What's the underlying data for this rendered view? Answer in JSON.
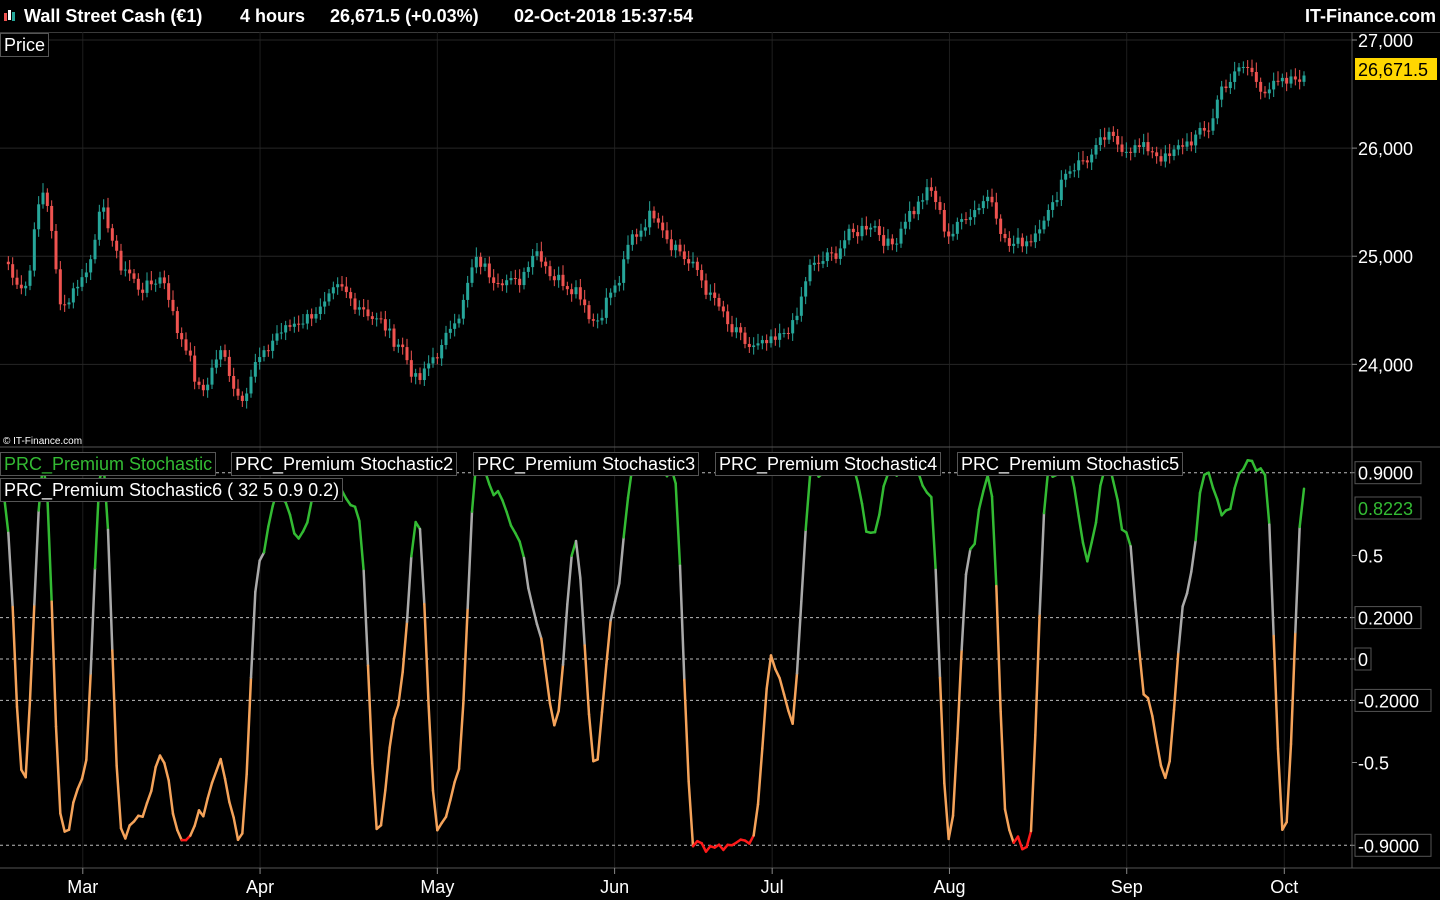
{
  "header": {
    "instrument": "Wall Street Cash (€1)",
    "timeframe": "4 hours",
    "quote": "26,671.5 (+0.03%)",
    "datetime": "02-Oct-2018 15:37:54",
    "brand": "IT-Finance.com"
  },
  "price_panel": {
    "label": "Price",
    "copyright": "© IT-Finance.com",
    "last_label": "26,671.5"
  },
  "indicator_panel": {
    "labels": [
      "PRC_Premium Stochastic",
      "PRC_Premium Stochastic2",
      "PRC_Premium Stochastic3",
      "PRC_Premium Stochastic4",
      "PRC_Premium Stochastic5"
    ],
    "label6": "PRC_Premium Stochastic6 ( 32 5 0.9 0.2)",
    "last_label": "0.8223"
  },
  "colors": {
    "up": "#26a69a",
    "down": "#ef5350",
    "last_price_bg": "#ffd700",
    "osc_green": "#33bb33",
    "osc_gray": "#aaaaaa",
    "osc_orange": "#f5a35a",
    "osc_red": "#ff1a1a"
  },
  "chart_data": [
    {
      "type": "line",
      "title": "Wall Street Cash (€1)",
      "ylim": [
        23300,
        27000
      ],
      "yticks": [
        27000,
        26000,
        25000,
        24000
      ],
      "ytick_labels": [
        "27,000",
        "26,000",
        "25,000",
        "24,000"
      ],
      "x_months": [
        "Mar",
        "Apr",
        "May",
        "Jun",
        "Jul",
        "Aug",
        "Sep",
        "Oct"
      ],
      "x": [
        "02-15",
        "02-19",
        "02-22",
        "02-26",
        "03-01",
        "03-05",
        "03-08",
        "03-12",
        "03-15",
        "03-19",
        "03-22",
        "03-26",
        "03-29",
        "04-02",
        "04-05",
        "04-09",
        "04-12",
        "04-16",
        "04-19",
        "04-23",
        "04-26",
        "04-30",
        "05-03",
        "05-07",
        "05-10",
        "05-14",
        "05-17",
        "05-21",
        "05-24",
        "05-28",
        "05-31",
        "06-04",
        "06-07",
        "06-11",
        "06-14",
        "06-18",
        "06-21",
        "06-25",
        "06-28",
        "07-02",
        "07-05",
        "07-09",
        "07-12",
        "07-16",
        "07-19",
        "07-23",
        "07-26",
        "07-30",
        "08-02",
        "08-06",
        "08-09",
        "08-13",
        "08-16",
        "08-20",
        "08-23",
        "08-27",
        "08-30",
        "09-03",
        "09-06",
        "09-10",
        "09-13",
        "09-17",
        "09-20",
        "09-24",
        "09-27",
        "10-01",
        "10-02"
      ],
      "values": [
        24950,
        24700,
        25600,
        24550,
        24800,
        25400,
        24900,
        24700,
        24800,
        24250,
        23750,
        24100,
        23700,
        24050,
        24300,
        24400,
        24500,
        24700,
        24550,
        24400,
        24200,
        23850,
        24100,
        24450,
        24950,
        24800,
        24750,
        25050,
        24800,
        24700,
        24400,
        24700,
        25200,
        25400,
        25100,
        24900,
        24600,
        24300,
        24150,
        24200,
        24350,
        24900,
        25000,
        25200,
        25300,
        25100,
        25400,
        25600,
        25200,
        25400,
        25550,
        25100,
        25150,
        25400,
        25800,
        25900,
        26100,
        26000,
        26000,
        25900,
        26050,
        26150,
        26600,
        26750,
        26550,
        26600,
        26671.5
      ]
    },
    {
      "type": "line",
      "title": "PRC_Premium Stochastic6 ( 32 5 0.9 0.2)",
      "ylim": [
        -1,
        1
      ],
      "yticks": [
        0.9,
        0.5,
        0.2,
        0,
        -0.2,
        -0.5,
        -0.9
      ],
      "ytick_labels": [
        "0.9000",
        "0.5",
        "0.2000",
        "0",
        "-0.2000",
        "-0.5",
        "-0.9000"
      ],
      "levels": [
        0.9,
        0.2,
        0,
        -0.2,
        -0.9
      ],
      "x": [
        "02-15",
        "02-19",
        "02-22",
        "02-26",
        "03-01",
        "03-05",
        "03-08",
        "03-12",
        "03-15",
        "03-19",
        "03-22",
        "03-26",
        "03-29",
        "04-02",
        "04-05",
        "04-09",
        "04-12",
        "04-16",
        "04-19",
        "04-23",
        "04-26",
        "04-30",
        "05-03",
        "05-07",
        "05-10",
        "05-14",
        "05-17",
        "05-21",
        "05-24",
        "05-28",
        "05-31",
        "06-04",
        "06-07",
        "06-11",
        "06-14",
        "06-18",
        "06-21",
        "06-25",
        "06-28",
        "07-02",
        "07-05",
        "07-09",
        "07-12",
        "07-16",
        "07-19",
        "07-23",
        "07-26",
        "07-30",
        "08-02",
        "08-06",
        "08-09",
        "08-13",
        "08-16",
        "08-20",
        "08-23",
        "08-27",
        "08-30",
        "09-03",
        "09-06",
        "09-10",
        "09-13",
        "09-17",
        "09-20",
        "09-24",
        "09-27",
        "10-01",
        "10-02"
      ],
      "values": [
        0.8,
        -0.6,
        0.95,
        -0.85,
        -0.6,
        0.95,
        -0.85,
        -0.75,
        -0.45,
        -0.9,
        -0.75,
        -0.5,
        -0.9,
        0.5,
        0.8,
        0.6,
        0.85,
        0.8,
        0.7,
        -0.85,
        -0.2,
        0.7,
        -0.85,
        -0.6,
        0.95,
        0.8,
        0.6,
        0.2,
        -0.3,
        0.6,
        -0.5,
        0.3,
        0.95,
        0.93,
        0.9,
        -0.88,
        -0.92,
        -0.9,
        -0.88,
        0.0,
        -0.3,
        0.9,
        0.93,
        0.95,
        0.6,
        0.9,
        0.93,
        0.8,
        -0.85,
        0.5,
        0.9,
        -0.85,
        -0.9,
        0.9,
        0.93,
        0.5,
        0.93,
        0.6,
        -0.2,
        -0.55,
        0.3,
        0.9,
        0.7,
        0.95,
        0.9,
        -0.85,
        0.8223
      ]
    }
  ]
}
